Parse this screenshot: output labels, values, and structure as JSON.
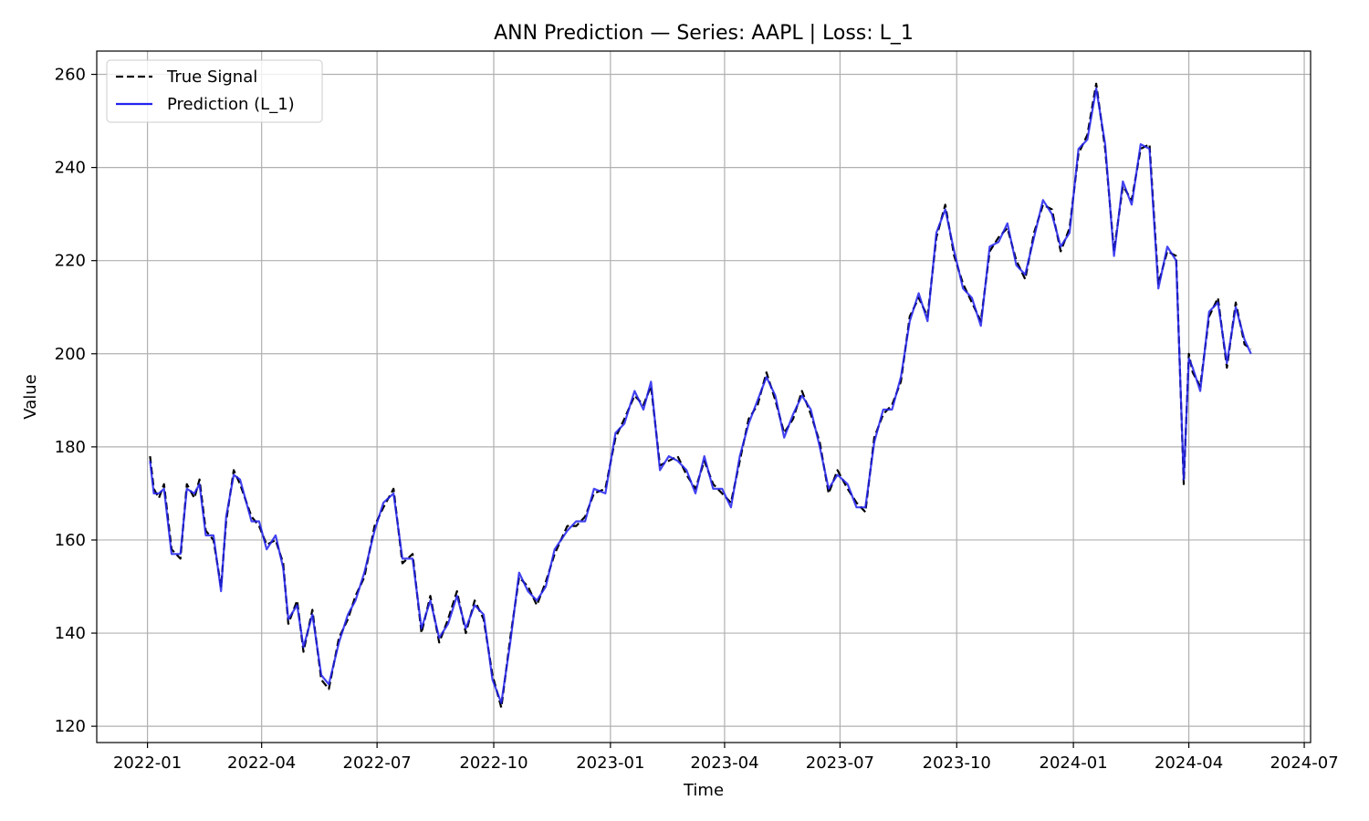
{
  "chart_data": {
    "type": "line",
    "title": "ANN Prediction — Series: AAPL | Loss: L_1",
    "xlabel": "Time",
    "ylabel": "Value",
    "xlim": [
      "2021-11-22",
      "2024-07-06"
    ],
    "ylim": [
      116.5,
      265
    ],
    "x_ticks": [
      "2022-01",
      "2022-04",
      "2022-07",
      "2022-10",
      "2023-01",
      "2023-04",
      "2023-07",
      "2023-10",
      "2024-01",
      "2024-04",
      "2024-07"
    ],
    "y_ticks": [
      120,
      140,
      160,
      180,
      200,
      220,
      240,
      260
    ],
    "grid": true,
    "legend_position": "top-left",
    "x": [
      "2022-01-03",
      "2022-01-06",
      "2022-01-10",
      "2022-01-14",
      "2022-01-20",
      "2022-01-27",
      "2022-02-01",
      "2022-02-07",
      "2022-02-11",
      "2022-02-16",
      "2022-02-22",
      "2022-02-28",
      "2022-03-04",
      "2022-03-10",
      "2022-03-15",
      "2022-03-24",
      "2022-03-30",
      "2022-04-05",
      "2022-04-12",
      "2022-04-18",
      "2022-04-22",
      "2022-04-29",
      "2022-05-04",
      "2022-05-11",
      "2022-05-18",
      "2022-05-24",
      "2022-06-01",
      "2022-06-08",
      "2022-06-14",
      "2022-06-21",
      "2022-06-29",
      "2022-07-06",
      "2022-07-14",
      "2022-07-21",
      "2022-07-29",
      "2022-08-05",
      "2022-08-12",
      "2022-08-19",
      "2022-08-26",
      "2022-09-02",
      "2022-09-09",
      "2022-09-16",
      "2022-09-23",
      "2022-09-30",
      "2022-10-07",
      "2022-10-14",
      "2022-10-21",
      "2022-10-28",
      "2022-11-04",
      "2022-11-11",
      "2022-11-18",
      "2022-11-28",
      "2022-12-05",
      "2022-12-12",
      "2022-12-19",
      "2022-12-28",
      "2023-01-05",
      "2023-01-12",
      "2023-01-20",
      "2023-01-27",
      "2023-02-02",
      "2023-02-09",
      "2023-02-16",
      "2023-02-23",
      "2023-03-02",
      "2023-03-09",
      "2023-03-16",
      "2023-03-23",
      "2023-03-30",
      "2023-04-06",
      "2023-04-13",
      "2023-04-20",
      "2023-04-27",
      "2023-05-04",
      "2023-05-11",
      "2023-05-18",
      "2023-05-25",
      "2023-06-01",
      "2023-06-08",
      "2023-06-15",
      "2023-06-22",
      "2023-06-29",
      "2023-07-07",
      "2023-07-14",
      "2023-07-21",
      "2023-07-28",
      "2023-08-04",
      "2023-08-11",
      "2023-08-18",
      "2023-08-25",
      "2023-09-01",
      "2023-09-08",
      "2023-09-15",
      "2023-09-22",
      "2023-09-29",
      "2023-10-06",
      "2023-10-13",
      "2023-10-20",
      "2023-10-27",
      "2023-11-03",
      "2023-11-10",
      "2023-11-17",
      "2023-11-24",
      "2023-12-01",
      "2023-12-08",
      "2023-12-15",
      "2023-12-22",
      "2023-12-29",
      "2024-01-05",
      "2024-01-12",
      "2024-01-19",
      "2024-01-26",
      "2024-02-02",
      "2024-02-09",
      "2024-02-16",
      "2024-02-23",
      "2024-03-01",
      "2024-03-08",
      "2024-03-15",
      "2024-03-22",
      "2024-03-28",
      "2024-04-01",
      "2024-04-04",
      "2024-04-10",
      "2024-04-17",
      "2024-04-24",
      "2024-05-01",
      "2024-05-08",
      "2024-05-15",
      "2024-05-20"
    ],
    "series": [
      {
        "name": "True Signal",
        "color": "#000000",
        "style": "dashed",
        "values": [
          178,
          171,
          169,
          172,
          158,
          156,
          172,
          169,
          173,
          162,
          160,
          150,
          164,
          175,
          172,
          165,
          163,
          159,
          160,
          155,
          142,
          147,
          136,
          145,
          130,
          128,
          139,
          143,
          148,
          152,
          163,
          167,
          171,
          155,
          157,
          140,
          148,
          138,
          143,
          149,
          140,
          147,
          143,
          131,
          124,
          139,
          152,
          150,
          146,
          151,
          157,
          163,
          163,
          165,
          170,
          171,
          182,
          186,
          191,
          189,
          193,
          176,
          177,
          178,
          174,
          171,
          177,
          172,
          170,
          168,
          177,
          186,
          189,
          196,
          190,
          183,
          186,
          192,
          187,
          181,
          170,
          175,
          171,
          168,
          166,
          182,
          187,
          189,
          194,
          208,
          212,
          208,
          225,
          232,
          221,
          215,
          211,
          207,
          222,
          225,
          227,
          220,
          216,
          226,
          232,
          231,
          222,
          227,
          243,
          247,
          258,
          244,
          222,
          236,
          233,
          244,
          245,
          215,
          222,
          221,
          172,
          200,
          196,
          193,
          208,
          212,
          197,
          211,
          202,
          201
        ]
      },
      {
        "name": "Prediction (L_1)",
        "color": "#2222ee",
        "style": "solid",
        "values": [
          177,
          170,
          170,
          171,
          157,
          157,
          171,
          170,
          172,
          161,
          161,
          149,
          165,
          174,
          173,
          164,
          164,
          158,
          161,
          154,
          143,
          146,
          137,
          144,
          131,
          129,
          138,
          144,
          147,
          153,
          162,
          168,
          170,
          156,
          156,
          141,
          147,
          139,
          142,
          148,
          141,
          146,
          144,
          130,
          125,
          138,
          153,
          149,
          147,
          150,
          158,
          162,
          164,
          164,
          171,
          170,
          183,
          185,
          192,
          188,
          194,
          175,
          178,
          177,
          175,
          170,
          178,
          171,
          171,
          167,
          178,
          185,
          190,
          195,
          191,
          182,
          187,
          191,
          188,
          180,
          171,
          174,
          172,
          167,
          167,
          181,
          188,
          188,
          195,
          207,
          213,
          207,
          226,
          231,
          222,
          214,
          212,
          206,
          223,
          224,
          228,
          219,
          217,
          225,
          233,
          230,
          223,
          226,
          244,
          246,
          257,
          245,
          221,
          237,
          232,
          245,
          244,
          214,
          223,
          220,
          173,
          199,
          197,
          192,
          209,
          211,
          198,
          210,
          203,
          200
        ]
      }
    ]
  }
}
